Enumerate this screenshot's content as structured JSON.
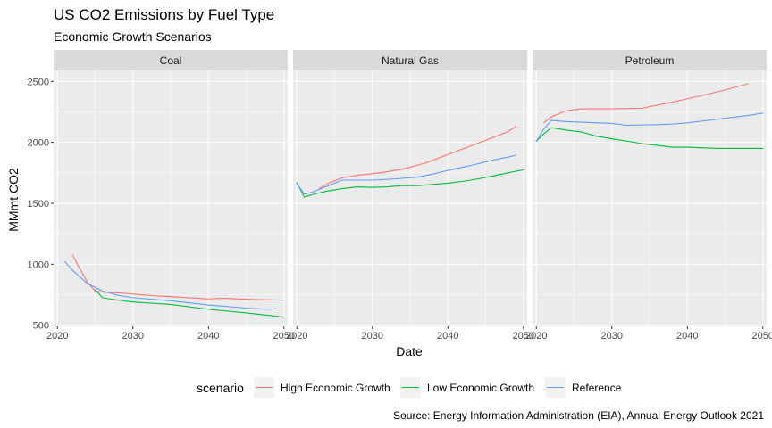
{
  "chart_data": {
    "type": "line",
    "title": "US CO2 Emissions by Fuel Type",
    "subtitle": "Economic Growth Scenarios",
    "xlabel": "Date",
    "ylabel": "MMmt CO2",
    "caption": "Source: Energy Information Administration (EIA), Annual Energy Outlook 2021",
    "legend_title": "scenario",
    "legend_position": "bottom",
    "grid": true,
    "xlim": [
      2019.5,
      2050.5
    ],
    "ylim": [
      490,
      2590
    ],
    "x_ticks": [
      2020,
      2030,
      2040,
      2050
    ],
    "y_ticks": [
      500,
      1000,
      1500,
      2000,
      2500
    ],
    "colors": {
      "High Economic Growth": "#F8766D",
      "Low Economic Growth": "#00BA38",
      "Reference": "#619CFF"
    },
    "series_names": [
      "High Economic Growth",
      "Low Economic Growth",
      "Reference"
    ],
    "panels": [
      {
        "name": "Coal",
        "series": [
          {
            "name": "High Economic Growth",
            "points": [
              [
                2022,
                1075
              ],
              [
                2023,
                960
              ],
              [
                2024,
                850
              ],
              [
                2025,
                780
              ],
              [
                2026,
                770
              ],
              [
                2028,
                765
              ],
              [
                2030,
                755
              ],
              [
                2033,
                740
              ],
              [
                2036,
                730
              ],
              [
                2040,
                715
              ],
              [
                2042,
                720
              ],
              [
                2046,
                710
              ],
              [
                2050,
                705
              ]
            ]
          },
          {
            "name": "Low Economic Growth",
            "points": [
              [
                2025,
                790
              ],
              [
                2026,
                725
              ],
              [
                2028,
                705
              ],
              [
                2030,
                690
              ],
              [
                2035,
                670
              ],
              [
                2040,
                630
              ],
              [
                2045,
                600
              ],
              [
                2048,
                580
              ],
              [
                2050,
                565
              ]
            ]
          },
          {
            "name": "Reference",
            "points": [
              [
                2021,
                1020
              ],
              [
                2022,
                950
              ],
              [
                2024,
                840
              ],
              [
                2026,
                780
              ],
              [
                2028,
                745
              ],
              [
                2030,
                725
              ],
              [
                2035,
                700
              ],
              [
                2040,
                665
              ],
              [
                2045,
                640
              ],
              [
                2048,
                630
              ],
              [
                2049,
                635
              ]
            ]
          }
        ]
      },
      {
        "name": "Natural Gas",
        "series": [
          {
            "name": "High Economic Growth",
            "points": [
              [
                2023,
                1620
              ],
              [
                2024,
                1660
              ],
              [
                2026,
                1710
              ],
              [
                2028,
                1730
              ],
              [
                2031,
                1750
              ],
              [
                2034,
                1780
              ],
              [
                2037,
                1830
              ],
              [
                2040,
                1900
              ],
              [
                2043,
                1970
              ],
              [
                2046,
                2040
              ],
              [
                2048,
                2090
              ],
              [
                2049,
                2130
              ]
            ]
          },
          {
            "name": "Low Economic Growth",
            "points": [
              [
                2020,
                1670
              ],
              [
                2021,
                1550
              ],
              [
                2022,
                1570
              ],
              [
                2024,
                1600
              ],
              [
                2026,
                1620
              ],
              [
                2028,
                1635
              ],
              [
                2030,
                1630
              ],
              [
                2032,
                1635
              ],
              [
                2034,
                1645
              ],
              [
                2036,
                1645
              ],
              [
                2038,
                1655
              ],
              [
                2040,
                1665
              ],
              [
                2042,
                1680
              ],
              [
                2044,
                1700
              ],
              [
                2046,
                1725
              ],
              [
                2048,
                1750
              ],
              [
                2050,
                1775
              ]
            ]
          },
          {
            "name": "Reference",
            "points": [
              [
                2020,
                1660
              ],
              [
                2021,
                1575
              ],
              [
                2022,
                1590
              ],
              [
                2024,
                1640
              ],
              [
                2026,
                1690
              ],
              [
                2028,
                1690
              ],
              [
                2030,
                1690
              ],
              [
                2033,
                1700
              ],
              [
                2036,
                1715
              ],
              [
                2038,
                1740
              ],
              [
                2040,
                1770
              ],
              [
                2043,
                1810
              ],
              [
                2046,
                1855
              ],
              [
                2048,
                1880
              ],
              [
                2049,
                1895
              ]
            ]
          }
        ]
      },
      {
        "name": "Petroleum",
        "series": [
          {
            "name": "High Economic Growth",
            "points": [
              [
                2021,
                2160
              ],
              [
                2022,
                2210
              ],
              [
                2024,
                2260
              ],
              [
                2026,
                2275
              ],
              [
                2030,
                2275
              ],
              [
                2034,
                2280
              ],
              [
                2038,
                2330
              ],
              [
                2042,
                2385
              ],
              [
                2045,
                2430
              ],
              [
                2048,
                2480
              ]
            ]
          },
          {
            "name": "Low Economic Growth",
            "points": [
              [
                2020,
                2010
              ],
              [
                2021,
                2070
              ],
              [
                2022,
                2120
              ],
              [
                2024,
                2100
              ],
              [
                2026,
                2085
              ],
              [
                2028,
                2050
              ],
              [
                2030,
                2030
              ],
              [
                2034,
                1990
              ],
              [
                2038,
                1960
              ],
              [
                2040,
                1960
              ],
              [
                2044,
                1950
              ],
              [
                2050,
                1950
              ]
            ]
          },
          {
            "name": "Reference",
            "points": [
              [
                2020,
                2010
              ],
              [
                2021,
                2110
              ],
              [
                2022,
                2180
              ],
              [
                2024,
                2170
              ],
              [
                2026,
                2165
              ],
              [
                2030,
                2155
              ],
              [
                2032,
                2140
              ],
              [
                2036,
                2145
              ],
              [
                2038,
                2150
              ],
              [
                2040,
                2160
              ],
              [
                2044,
                2190
              ],
              [
                2048,
                2220
              ],
              [
                2050,
                2240
              ]
            ]
          }
        ]
      }
    ]
  }
}
